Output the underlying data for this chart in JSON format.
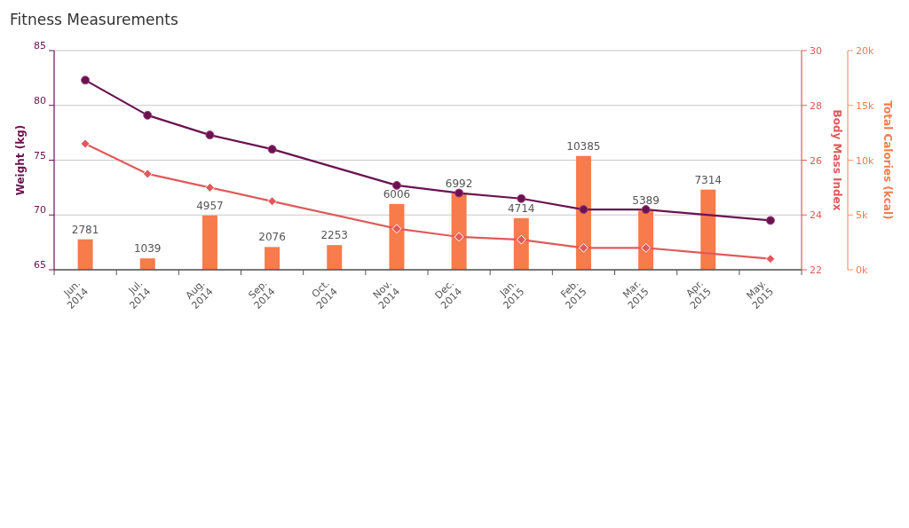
{
  "chart_data": {
    "type": "bar",
    "title": "Fitness Measurements",
    "ylabel": "Weight (kg)",
    "y2label": "Body Mass Index",
    "y3label": "Total Calories (kcal)",
    "categories": [
      "Jun. 2014",
      "Jul. 2014",
      "Aug. 2014",
      "Sep. 2014",
      "Oct. 2014",
      "Nov. 2014",
      "Dec. 2014",
      "Jan. 2015",
      "Feb. 2015",
      "Mar. 2015",
      "Apr. 2015",
      "May. 2015"
    ],
    "ylim": [
      65,
      85
    ],
    "yticks": [
      65,
      70,
      75,
      80,
      85
    ],
    "y2lim": [
      22,
      30
    ],
    "y2ticks": [
      22,
      24,
      26,
      28,
      30
    ],
    "y3lim": [
      0,
      20000
    ],
    "y3ticks": [
      {
        "value": 0,
        "label": "0k"
      },
      {
        "value": 5000,
        "label": "5k"
      },
      {
        "value": 10000,
        "label": "10k"
      },
      {
        "value": 15000,
        "label": "15k"
      },
      {
        "value": 20000,
        "label": "20k"
      }
    ],
    "grid": "y",
    "series": [
      {
        "axis": "y3",
        "color": "#f77b4b",
        "values": [
          2781,
          1039,
          4957,
          2076,
          2253,
          6006,
          6992,
          4714,
          10385,
          5389,
          7314,
          null
        ],
        "value_labels": [
          "2781",
          "1039",
          "4957",
          "2076",
          "2253",
          "6006",
          "6992",
          "4714",
          "10385",
          "5389",
          "7314",
          null
        ]
      },
      {
        "type": "line",
        "axis": "y",
        "color": "#6b1250",
        "marker": "circle",
        "values": [
          82.3,
          79.1,
          77.3,
          76.0,
          null,
          72.7,
          72.0,
          71.5,
          70.5,
          70.5,
          null,
          69.5
        ]
      },
      {
        "type": "line",
        "axis": "y2",
        "color": "#e05a5c",
        "marker": "diamond",
        "values": [
          26.6,
          25.5,
          25.0,
          24.5,
          null,
          23.5,
          23.2,
          23.1,
          22.8,
          22.8,
          null,
          22.4
        ]
      }
    ]
  }
}
